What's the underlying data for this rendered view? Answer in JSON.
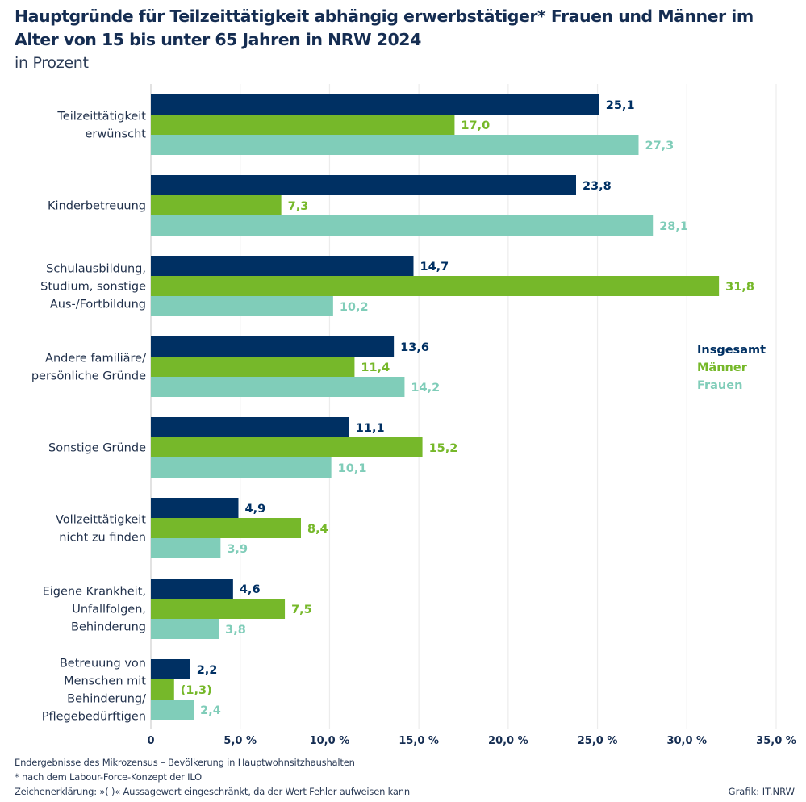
{
  "title": "Hauptgründe für Teilzeittätigkeit abhängig erwerbstätiger* Frauen und Männer im Alter von 15 bis unter 65 Jahren in NRW 2024",
  "subtitle": "in Prozent",
  "footer": {
    "source": "Endergebnisse des Mikrozensus – Bevölkerung in Hauptwohnsitzhaushalten",
    "footnote": "*  nach dem Labour-Force-Konzept der ILO",
    "legend_note": "Zeichenerklärung:  »( )« Aussagewert eingeschränkt, da der Wert Fehler aufweisen kann",
    "credit": "Grafik: IT.NRW"
  },
  "chart_data": {
    "type": "bar",
    "orientation": "horizontal",
    "title": "Hauptgründe für Teilzeittätigkeit abhängig erwerbstätiger* Frauen und Männer im Alter von 15 bis unter 65 Jahren in NRW 2024",
    "subtitle": "in Prozent",
    "xlabel": "",
    "ylabel": "",
    "xlim": [
      0,
      35
    ],
    "grid": true,
    "legend_position": "right",
    "x_ticks": [
      0,
      5,
      10,
      15,
      20,
      25,
      30,
      35
    ],
    "x_tick_labels": [
      "0",
      "5,0 %",
      "10,0 %",
      "15,0 %",
      "20,0 %",
      "25,0 %",
      "30,0 %",
      "35,0 %"
    ],
    "categories": [
      [
        "Teilzeittätigkeit",
        "erwünscht"
      ],
      [
        "Kinderbetreuung"
      ],
      [
        "Schulausbildung,",
        "Studium, sonstige",
        "Aus-/Fortbildung"
      ],
      [
        "Andere familiäre/",
        "persönliche Gründe"
      ],
      [
        "Sonstige Gründe"
      ],
      [
        "Vollzeittätigkeit",
        "nicht zu finden"
      ],
      [
        "Eigene Krankheit,",
        "Unfallfolgen,",
        "Behinderung"
      ],
      [
        "Betreuung von",
        "Menschen mit",
        "Behinderung/",
        "Pflegebedürftigen"
      ]
    ],
    "series": [
      {
        "name": "Insgesamt",
        "color": "#003063",
        "values": [
          25.1,
          23.8,
          14.7,
          13.6,
          11.1,
          4.9,
          4.6,
          2.2
        ],
        "labels": [
          "25,1",
          "23,8",
          "14,7",
          "13,6",
          "11,1",
          "4,9",
          "4,6",
          "2,2"
        ]
      },
      {
        "name": "Männer",
        "color": "#76b82a",
        "values": [
          17.0,
          7.3,
          31.8,
          11.4,
          15.2,
          8.4,
          7.5,
          1.3
        ],
        "labels": [
          "17,0",
          "7,3",
          "31,8",
          "11,4",
          "15,2",
          "8,4",
          "7,5",
          "(1,3)"
        ]
      },
      {
        "name": "Frauen",
        "color": "#80cdb9",
        "values": [
          27.3,
          28.1,
          10.2,
          14.2,
          10.1,
          3.9,
          3.8,
          2.4
        ],
        "labels": [
          "27,3",
          "28,1",
          "10,2",
          "14,2",
          "10,1",
          "3,9",
          "3,8",
          "2,4"
        ]
      }
    ]
  }
}
